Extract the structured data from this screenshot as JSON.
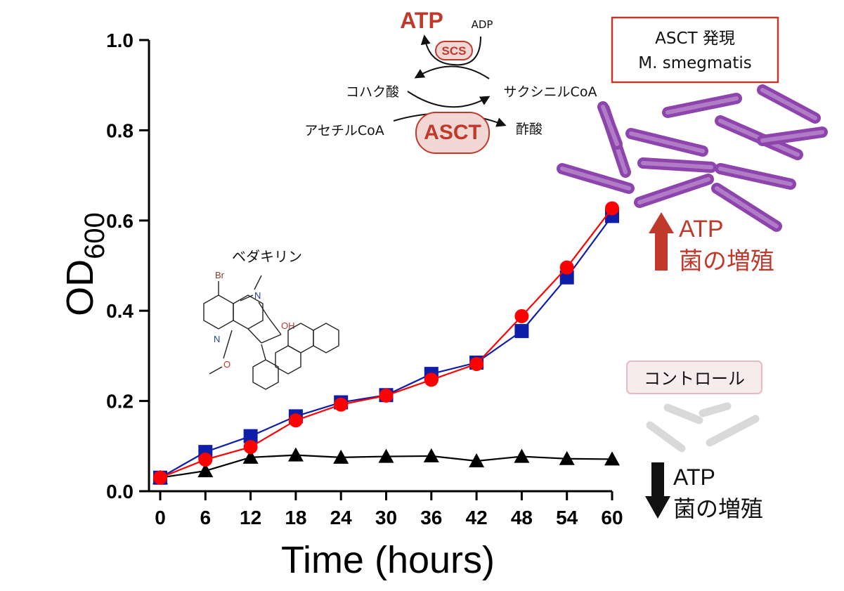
{
  "chart_data": {
    "type": "line",
    "xlabel": "Time (hours)",
    "ylabel_main": "OD",
    "ylabel_sub": "600",
    "xlim": [
      0,
      60
    ],
    "ylim": [
      0.0,
      1.0
    ],
    "x_ticks": [
      "0",
      "6",
      "12",
      "18",
      "24",
      "30",
      "36",
      "42",
      "48",
      "54",
      "60"
    ],
    "y_ticks": [
      "0.0",
      "0.2",
      "0.4",
      "0.6",
      "0.8",
      "1.0"
    ],
    "y_tick_values": [
      0.0,
      0.2,
      0.4,
      0.6,
      0.8,
      1.0
    ],
    "x": [
      0,
      6,
      12,
      18,
      24,
      30,
      36,
      42,
      48,
      54,
      60
    ],
    "grid": false,
    "legend": "none",
    "series": [
      {
        "marker": "square",
        "color": "#0f1ea8",
        "values": [
          0.03,
          0.087,
          0.122,
          0.166,
          0.197,
          0.213,
          0.26,
          0.285,
          0.355,
          0.474,
          0.61
        ]
      },
      {
        "marker": "circle",
        "color": "#ff0000",
        "values": [
          0.03,
          0.07,
          0.098,
          0.157,
          0.192,
          0.212,
          0.247,
          0.282,
          0.388,
          0.496,
          0.627
        ]
      },
      {
        "marker": "triangle",
        "color": "#000000",
        "values": [
          0.03,
          0.045,
          0.075,
          0.08,
          0.075,
          0.077,
          0.078,
          0.067,
          0.077,
          0.072,
          0.071
        ]
      }
    ]
  },
  "pathway": {
    "atp": "ATP",
    "adp": "ADP",
    "scs": "SCS",
    "succinate": "コハク酸",
    "succinyl_coa": "サクシニルCoA",
    "acetyl_coa": "アセチルCoA",
    "acetate": "酢酸",
    "asct": "ASCT"
  },
  "molecule": {
    "name": "ベダキリン",
    "br": "Br",
    "n_ring": "N",
    "n_amine": "N",
    "oh": "OH",
    "o": "O"
  },
  "annotations": {
    "asct_box_line1": "ASCT 発現",
    "asct_box_line2": "M. smegmatis",
    "up_atp": "ATP",
    "up_growth": "菌の増殖",
    "control_box": "コントロール",
    "down_atp": "ATP",
    "down_growth": "菌の増殖"
  },
  "colors": {
    "accent_red": "#c0392b",
    "bacteria_asct": "#8e44ad",
    "bacteria_control": "#d9d9d9",
    "control_box_fill": "#f6ecee",
    "control_box_border": "#e9b9bf",
    "pathway_pill_fill": "#f2d7d5"
  }
}
